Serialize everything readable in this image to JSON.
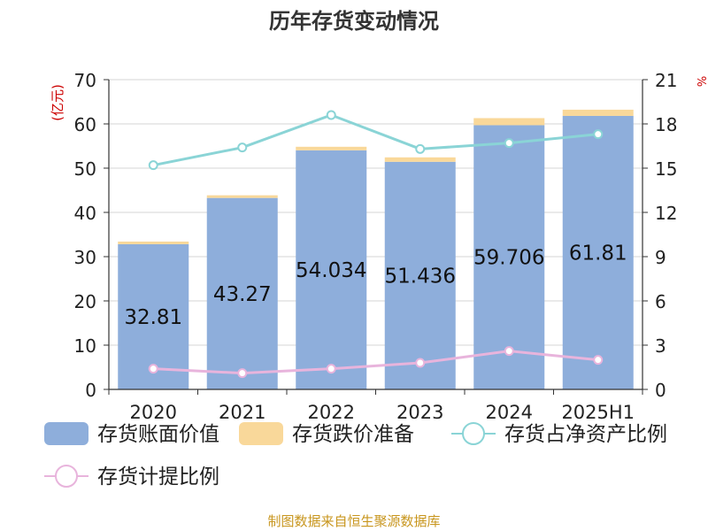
{
  "chart_data": {
    "type": "bar",
    "title": "历年存货变动情况",
    "categories": [
      "2020",
      "2021",
      "2022",
      "2023",
      "2024",
      "2025H1"
    ],
    "ylabel": "(亿元)",
    "ylim": [
      0,
      70
    ],
    "yticks": [
      "0",
      "10",
      "20",
      "30",
      "40",
      "50",
      "60",
      "70"
    ],
    "y2lim": [
      0,
      21
    ],
    "y2ticks": [
      "0",
      "3",
      "6",
      "9",
      "12",
      "15",
      "18",
      "21"
    ],
    "y2label": "%",
    "stacked": true,
    "series": [
      {
        "name": "存货账面价值",
        "kind": "bar",
        "axis": "left",
        "color": "#8eaedb",
        "values": [
          32.81,
          43.27,
          54.034,
          51.436,
          59.706,
          61.81
        ],
        "labels": [
          "32.81",
          "43.27",
          "54.034",
          "51.436",
          "59.706",
          "61.81"
        ]
      },
      {
        "name": "存货跌价准备",
        "kind": "bar",
        "axis": "left",
        "color": "#f9d89a",
        "values": [
          0.6,
          0.6,
          0.8,
          1.0,
          1.6,
          1.4
        ]
      },
      {
        "name": "存货占净资产比例",
        "kind": "line",
        "axis": "right",
        "color": "#8ad4d6",
        "values": [
          15.2,
          16.4,
          18.6,
          16.3,
          16.7,
          17.3
        ]
      },
      {
        "name": "存货计提比例",
        "kind": "line",
        "axis": "right",
        "color": "#e8b4dc",
        "values": [
          1.4,
          1.1,
          1.4,
          1.8,
          2.6,
          2.0
        ]
      }
    ],
    "grid": true,
    "legend_position": "bottom"
  },
  "source": "制图数据来自恒生聚源数据库"
}
